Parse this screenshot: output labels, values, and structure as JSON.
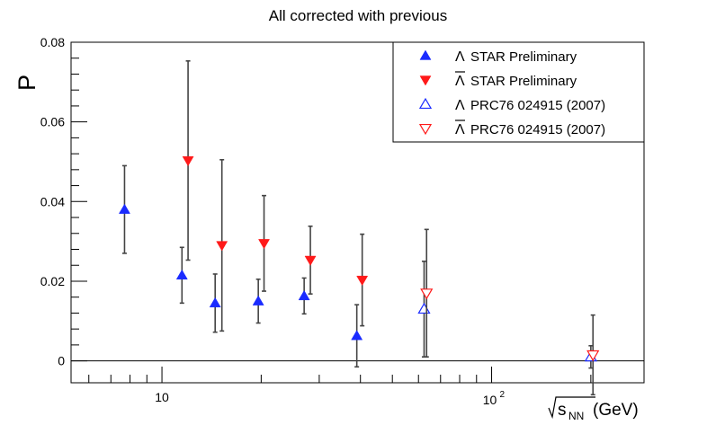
{
  "chart_data": {
    "type": "scatter",
    "title": "All corrected with previous",
    "ylabel": "P",
    "xlabel": {
      "sqrt": "s",
      "sub": "NN",
      "unit": "(GeV)"
    },
    "xscale": "log",
    "xlim": [
      5.3,
      290
    ],
    "ylim": [
      -0.0055,
      0.08
    ],
    "x_tick_labels": [
      {
        "value": 10,
        "label": "10"
      },
      {
        "value": 100,
        "base": "10",
        "exp": "2"
      }
    ],
    "y_tick_labels": [
      {
        "value": 0,
        "label": "0"
      },
      {
        "value": 0.02,
        "label": "0.02"
      },
      {
        "value": 0.04,
        "label": "0.04"
      },
      {
        "value": 0.06,
        "label": "0.06"
      },
      {
        "value": 0.08,
        "label": "0.08"
      }
    ],
    "zero_line": 0,
    "legend_position": "top-right",
    "series": [
      {
        "name_parts": {
          "symbol": "Λ",
          "overline": false,
          "text": "STAR Preliminary"
        },
        "marker": "triangle-up",
        "filled": true,
        "color": "#1a2bff",
        "points": [
          {
            "x": 7.7,
            "y": 0.038,
            "err": 0.011
          },
          {
            "x": 11.5,
            "y": 0.0215,
            "err": 0.007
          },
          {
            "x": 14.5,
            "y": 0.0145,
            "err": 0.0073
          },
          {
            "x": 19.6,
            "y": 0.015,
            "err": 0.0055
          },
          {
            "x": 27,
            "y": 0.0163,
            "err": 0.0045
          },
          {
            "x": 39,
            "y": 0.0063,
            "err": 0.0078
          }
        ]
      },
      {
        "name_parts": {
          "symbol": "Λ",
          "overline": true,
          "text": "STAR Preliminary"
        },
        "marker": "triangle-down",
        "filled": true,
        "color": "#ff1a1a",
        "points": [
          {
            "x": 12.0,
            "y": 0.0503,
            "err": 0.025
          },
          {
            "x": 15.2,
            "y": 0.029,
            "err": 0.0215
          },
          {
            "x": 20.4,
            "y": 0.0295,
            "err": 0.012
          },
          {
            "x": 28.2,
            "y": 0.0253,
            "err": 0.0085
          },
          {
            "x": 40.5,
            "y": 0.0203,
            "err": 0.0115
          }
        ]
      },
      {
        "name_parts": {
          "symbol": "Λ",
          "overline": false,
          "text": "PRC76 024915 (2007)"
        },
        "marker": "triangle-up",
        "filled": false,
        "color": "#1a2bff",
        "points": [
          {
            "x": 62.4,
            "y": 0.013,
            "err": 0.012
          },
          {
            "x": 200,
            "y": 0.001,
            "err": 0.0028
          }
        ]
      },
      {
        "name_parts": {
          "symbol": "Λ",
          "overline": true,
          "text": "PRC76 024915 (2007)"
        },
        "marker": "triangle-down",
        "filled": false,
        "color": "#ff1a1a",
        "points": [
          {
            "x": 63.5,
            "y": 0.017,
            "err": 0.016
          },
          {
            "x": 203,
            "y": 0.0015,
            "err": 0.01
          }
        ]
      }
    ]
  }
}
